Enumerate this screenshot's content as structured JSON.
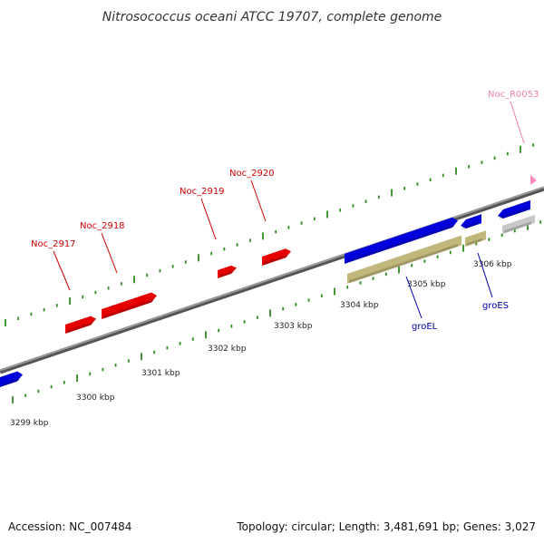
{
  "title": "Nitrosococcus oceani ATCC 19707, complete genome",
  "footer": {
    "accession": "Accession: NC_007484",
    "topology": "Topology: circular; Length: 3,481,691 bp; Genes: 3,027"
  },
  "colors": {
    "background": "#ffffff",
    "backbone": "#7a7a7a",
    "tick": "#2e8b1e",
    "gene_red": "#e60000",
    "gene_blue": "#0000dd",
    "gene_olive": "#c2b77a",
    "gene_gray": "#c8c8c8",
    "label_red": "#cc0000",
    "label_blue": "#0000aa",
    "label_pink": "#f080b0",
    "rrna_pink": "#ff88c0"
  },
  "scale": {
    "unit": "kbp",
    "labels": [
      "3299 kbp",
      "3300 kbp",
      "3301 kbp",
      "3302 kbp",
      "3303 kbp",
      "3304 kbp",
      "3305 kbp",
      "3306 kbp"
    ]
  },
  "gene_labels": [
    {
      "name": "Noc_2917",
      "color": "label_red"
    },
    {
      "name": "Noc_2918",
      "color": "label_red"
    },
    {
      "name": "Noc_2919",
      "color": "label_red"
    },
    {
      "name": "Noc_2920",
      "color": "label_red"
    },
    {
      "name": "Noc_R0053",
      "color": "label_pink"
    },
    {
      "name": "groEL",
      "color": "label_blue"
    },
    {
      "name": "groES",
      "color": "label_blue"
    }
  ]
}
